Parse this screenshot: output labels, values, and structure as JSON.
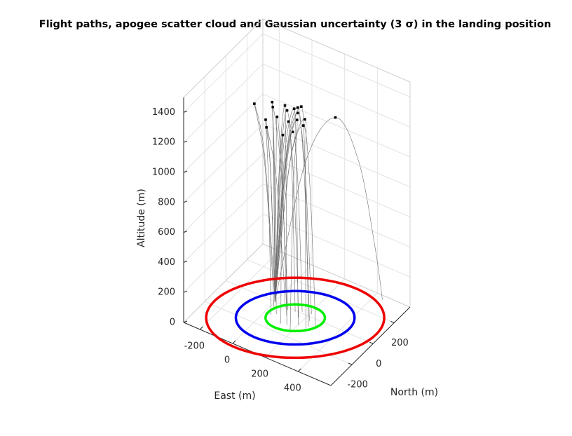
{
  "chart_data": {
    "type": "line3d",
    "title": "Flight paths, apogee scatter cloud and Gaussian uncertainty (3 σ) in the landing position",
    "xlabel": "East (m)",
    "ylabel": "North (m)",
    "zlabel": "Altitude (m)",
    "xlim": [
      -300,
      600
    ],
    "ylim": [
      -400,
      350
    ],
    "zlim": [
      0,
      1500
    ],
    "xticks": [
      -200,
      0,
      200,
      400
    ],
    "yticks": [
      -200,
      0,
      200
    ],
    "zticks": [
      0,
      200,
      400,
      600,
      800,
      1000,
      1200,
      1400
    ],
    "grid": true,
    "path_color": "#6e6e6e",
    "apogee_color": "#000000",
    "flights": [
      {
        "x": [
          0,
          -63,
          -126,
          -53,
          -2,
          20
        ],
        "y": [
          0,
          0,
          0,
          -20,
          -34,
          -40
        ],
        "z": [
          0,
          945,
          1260,
          945,
          350,
          0
        ]
      },
      {
        "x": [
          0,
          -9,
          -17,
          22,
          48,
          60
        ],
        "y": [
          0,
          0,
          0,
          -40,
          -68,
          -80
        ],
        "z": [
          0,
          992,
          1322,
          992,
          367,
          0
        ]
      },
      {
        "x": [
          0,
          -7,
          -13,
          39,
          75,
          90
        ],
        "y": [
          0,
          0,
          0,
          -10,
          -17,
          -20
        ],
        "z": [
          0,
          968,
          1291,
          968,
          358,
          0
        ]
      },
      {
        "x": [
          0,
          -29,
          -57,
          -9,
          25,
          40
        ],
        "y": [
          0,
          0,
          0,
          -50,
          -85,
          -100
        ],
        "z": [
          0,
          890,
          1186,
          890,
          329,
          0
        ]
      },
      {
        "x": [
          0,
          -26,
          -52,
          9,
          52,
          70
        ],
        "y": [
          0,
          0,
          0,
          -5,
          -9,
          -10
        ],
        "z": [
          0,
          853,
          1137,
          853,
          316,
          0
        ]
      },
      {
        "x": [
          0,
          7,
          13,
          62,
          95,
          110
        ],
        "y": [
          0,
          0,
          0,
          -30,
          -51,
          -60
        ],
        "z": [
          0,
          929,
          1238,
          929,
          344,
          0
        ]
      },
      {
        "x": [
          0,
          31,
          61,
          106,
          137,
          150
        ],
        "y": [
          0,
          0,
          0,
          -60,
          -102,
          -120
        ],
        "z": [
          0,
          1002,
          1336,
          1002,
          371,
          0
        ]
      },
      {
        "x": [
          0,
          37,
          74,
          122,
          156,
          170
        ],
        "y": [
          0,
          0,
          0,
          -20,
          -34,
          -40
        ],
        "z": [
          0,
          982,
          1309,
          982,
          363,
          0
        ]
      },
      {
        "x": [
          0,
          59,
          117,
          159,
          188,
          200
        ],
        "y": [
          0,
          0,
          0,
          -45,
          -77,
          -90
        ],
        "z": [
          0,
          1005,
          1340,
          1005,
          372,
          0
        ]
      },
      {
        "x": [
          0,
          70,
          139,
          185,
          216,
          230
        ],
        "y": [
          0,
          0,
          0,
          -15,
          -26,
          -30
        ],
        "z": [
          0,
          1019,
          1359,
          1019,
          377,
          0
        ]
      },
      {
        "x": [
          0,
          81,
          161,
          206,
          237,
          250
        ],
        "y": [
          0,
          0,
          0,
          -35,
          -60,
          -70
        ],
        "z": [
          0,
          1031,
          1375,
          1031,
          382,
          0
        ]
      },
      {
        "x": [
          0,
          42,
          83,
          107,
          123,
          130
        ],
        "y": [
          0,
          0,
          0,
          -5,
          -9,
          -10
        ],
        "z": [
          0,
          929,
          1239,
          929,
          344,
          0
        ]
      },
      {
        "x": [
          0,
          68,
          135,
          163,
          182,
          190
        ],
        "y": [
          0,
          0,
          0,
          -75,
          -128,
          -150
        ],
        "z": [
          0,
          956,
          1274,
          956,
          354,
          0
        ]
      },
      {
        "x": [
          0,
          92,
          183,
          222,
          248,
          260
        ],
        "y": [
          0,
          0,
          0,
          -55,
          -94,
          -110
        ],
        "z": [
          0,
          976,
          1301,
          976,
          361,
          0
        ]
      },
      {
        "x": [
          0,
          70,
          139,
          175,
          199,
          210
        ],
        "y": [
          0,
          0,
          0,
          10,
          17,
          20
        ],
        "z": [
          0,
          992,
          1322,
          992,
          367,
          0
        ]
      },
      {
        "x": [
          0,
          24,
          48,
          84,
          109,
          120
        ],
        "y": [
          0,
          0,
          0,
          -65,
          -111,
          -130
        ],
        "z": [
          0,
          850,
          1133,
          850,
          314,
          0
        ]
      },
      {
        "x": [
          0,
          55,
          109,
          135,
          152,
          160
        ],
        "y": [
          0,
          0,
          0,
          5,
          9,
          10
        ],
        "z": [
          0,
          887,
          1182,
          887,
          328,
          0
        ]
      },
      {
        "x": [
          0,
          87,
          174,
          227,
          264,
          280
        ],
        "y": [
          0,
          0,
          0,
          -25,
          -43,
          -50
        ],
        "z": [
          0,
          941,
          1255,
          941,
          348,
          0
        ]
      },
      {
        "x": [
          0,
          133,
          266,
          358,
          422,
          450
        ],
        "y": [
          0,
          80,
          160,
          240,
          296,
          320
        ],
        "z": [
          0,
          930,
          1240,
          930,
          344,
          0
        ]
      }
    ],
    "uncertainty": {
      "mean": [
        156,
        -50
      ],
      "std": [
        139,
        123
      ],
      "correlation": 0.33,
      "contours": [
        {
          "sigma": 1,
          "color": "#00ee00"
        },
        {
          "sigma": 2,
          "color": "#0000ee"
        },
        {
          "sigma": 3,
          "color": "#ee0000"
        }
      ]
    }
  }
}
